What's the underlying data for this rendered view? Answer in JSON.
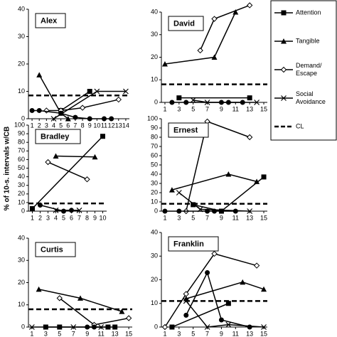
{
  "y_axis_label": "% of 10-s. intervals w/CB",
  "legend": [
    {
      "name": "Attention",
      "marker": "square"
    },
    {
      "name": "Tangible",
      "marker": "triangle"
    },
    {
      "name": "Demand/ Escape",
      "marker": "diamond"
    },
    {
      "name": "Social Avoidance",
      "marker": "x"
    },
    {
      "name": "CL",
      "style": "dashed"
    }
  ],
  "chart_data": [
    {
      "type": "line",
      "title": "Alex",
      "xlim": [
        0.5,
        14.5
      ],
      "xticks": [
        1,
        2,
        3,
        4,
        5,
        6,
        7,
        8,
        9,
        10,
        11,
        12,
        13,
        14
      ],
      "ylim": [
        0,
        40
      ],
      "yticks": [
        0,
        10,
        20,
        30,
        40
      ],
      "cl": 8.5,
      "series": [
        {
          "marker": "square",
          "x": [
            5,
            9
          ],
          "values": [
            3,
            10
          ]
        },
        {
          "marker": "triangle",
          "x": [
            2,
            5,
            6
          ],
          "values": [
            16,
            2,
            0
          ]
        },
        {
          "marker": "diamond",
          "x": [
            3,
            5,
            8,
            13
          ],
          "values": [
            3,
            3,
            4,
            7
          ]
        },
        {
          "marker": "x",
          "x": [
            4,
            10,
            14
          ],
          "values": [
            0,
            10,
            10
          ]
        },
        {
          "marker": "circle",
          "x": [
            1,
            2,
            5,
            7,
            9,
            11,
            12
          ],
          "values": [
            3,
            3,
            2,
            0.5,
            0,
            0,
            0
          ]
        }
      ]
    },
    {
      "type": "line",
      "title": "David",
      "xlim": [
        0.5,
        15.5
      ],
      "xticks": [
        1,
        3,
        5,
        7,
        9,
        11,
        13,
        15
      ],
      "ylim": [
        0,
        40
      ],
      "yticks": [
        0,
        10,
        20,
        30,
        40
      ],
      "cl": 8,
      "series": [
        {
          "marker": "square",
          "x": [
            3,
            13
          ],
          "values": [
            2,
            2
          ]
        },
        {
          "marker": "triangle",
          "x": [
            1,
            8,
            11
          ],
          "values": [
            17,
            20,
            40
          ]
        },
        {
          "marker": "diamond",
          "x": [
            6,
            8,
            13
          ],
          "values": [
            23,
            37,
            43
          ]
        },
        {
          "marker": "x",
          "x": [
            5,
            7,
            14
          ],
          "values": [
            1,
            0,
            0
          ]
        },
        {
          "marker": "circle",
          "x": [
            2,
            4,
            9,
            10,
            12
          ],
          "values": [
            0,
            0,
            0,
            0,
            0
          ]
        }
      ]
    },
    {
      "type": "line",
      "title": "Bradley",
      "xlim": [
        0.5,
        10.5
      ],
      "xticks": [
        1,
        2,
        3,
        4,
        5,
        6,
        7,
        8,
        9,
        10
      ],
      "ylim": [
        0,
        100
      ],
      "yticks": [
        0,
        10,
        20,
        30,
        40,
        50,
        60,
        70,
        80,
        90,
        100
      ],
      "cl": 9,
      "series": [
        {
          "marker": "square",
          "x": [
            1,
            10
          ],
          "values": [
            3,
            87
          ]
        },
        {
          "marker": "triangle",
          "x": [
            4,
            9
          ],
          "values": [
            64,
            63
          ]
        },
        {
          "marker": "diamond",
          "x": [
            3,
            8
          ],
          "values": [
            57,
            37
          ]
        },
        {
          "marker": "x",
          "x": [
            4,
            7
          ],
          "values": [
            1,
            1
          ]
        },
        {
          "marker": "circle",
          "x": [
            2,
            5,
            6
          ],
          "values": [
            7,
            0,
            1
          ]
        }
      ]
    },
    {
      "type": "line",
      "title": "Ernest",
      "xlim": [
        0.5,
        15.5
      ],
      "xticks": [
        1,
        3,
        5,
        7,
        9,
        11,
        13,
        15
      ],
      "ylim": [
        0,
        100
      ],
      "yticks": [
        0,
        10,
        20,
        30,
        40,
        50,
        60,
        70,
        80,
        90,
        100
      ],
      "cl": 8,
      "series": [
        {
          "marker": "square",
          "x": [
            5,
            9,
            15
          ],
          "values": [
            7,
            0,
            37
          ]
        },
        {
          "marker": "triangle",
          "x": [
            2,
            10,
            14
          ],
          "values": [
            23,
            40,
            32
          ]
        },
        {
          "marker": "diamond",
          "x": [
            4,
            7,
            13
          ],
          "values": [
            0,
            97,
            80
          ]
        },
        {
          "marker": "x",
          "x": [
            3,
            6,
            13
          ],
          "values": [
            20,
            2,
            0
          ]
        },
        {
          "marker": "circle",
          "x": [
            1,
            3,
            7,
            8,
            9,
            11
          ],
          "values": [
            0,
            0,
            0,
            0,
            0,
            0
          ]
        }
      ]
    },
    {
      "type": "line",
      "title": "Curtis",
      "xlim": [
        0.5,
        15.5
      ],
      "xticks": [
        1,
        3,
        5,
        7,
        9,
        11,
        13,
        15
      ],
      "ylim": [
        0,
        40
      ],
      "yticks": [
        0,
        10,
        20,
        30,
        40
      ],
      "cl": 8,
      "series": [
        {
          "marker": "square",
          "x": [
            3,
            5,
            12,
            13
          ],
          "values": [
            0,
            0,
            0,
            0
          ]
        },
        {
          "marker": "triangle",
          "x": [
            2,
            8,
            14
          ],
          "values": [
            17,
            13,
            7
          ]
        },
        {
          "marker": "diamond",
          "x": [
            5,
            10,
            15
          ],
          "values": [
            13,
            1,
            4
          ]
        },
        {
          "marker": "x",
          "x": [
            1,
            7,
            11
          ],
          "values": [
            0,
            0,
            0
          ]
        },
        {
          "marker": "circle",
          "x": [
            9,
            10,
            12
          ],
          "values": [
            0,
            0,
            0
          ]
        }
      ]
    },
    {
      "type": "line",
      "title": "Franklin",
      "xlim": [
        0.5,
        15.5
      ],
      "xticks": [
        1,
        3,
        5,
        7,
        9,
        11,
        13,
        15
      ],
      "ylim": [
        0,
        40
      ],
      "yticks": [
        0,
        10,
        20,
        30,
        40
      ],
      "cl": 11,
      "series": [
        {
          "marker": "square",
          "x": [
            2,
            10
          ],
          "values": [
            0,
            10
          ]
        },
        {
          "marker": "triangle",
          "x": [
            4,
            12,
            15
          ],
          "values": [
            12,
            19,
            16
          ]
        },
        {
          "marker": "diamond",
          "x": [
            1,
            4,
            8,
            14
          ],
          "values": [
            0,
            14,
            31,
            26
          ]
        },
        {
          "marker": "x",
          "x": [
            4,
            7,
            10,
            15
          ],
          "values": [
            11,
            0,
            1,
            0
          ]
        },
        {
          "marker": "circle",
          "x": [
            4,
            7,
            9,
            13
          ],
          "values": [
            5,
            23,
            3,
            0
          ]
        }
      ]
    }
  ]
}
